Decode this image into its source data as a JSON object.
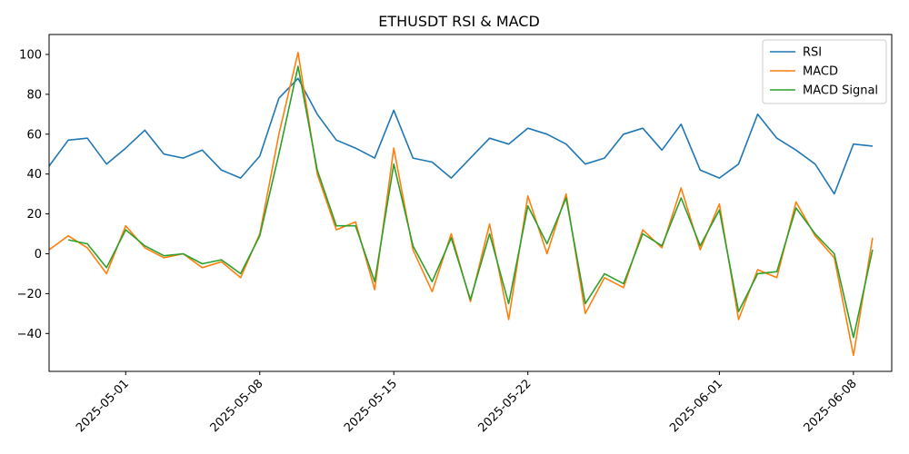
{
  "chart_data": {
    "type": "line",
    "title": "ETHUSDT RSI & MACD",
    "xlabel": "",
    "ylabel": "",
    "x_range": [
      "2025-04-27",
      "2025-06-10"
    ],
    "ylim": [
      -59,
      110
    ],
    "x_ticks": [
      "2025-05-01",
      "2025-05-08",
      "2025-05-15",
      "2025-05-22",
      "2025-06-01",
      "2025-06-08"
    ],
    "y_ticks": [
      -40,
      -20,
      0,
      20,
      40,
      60,
      80,
      100
    ],
    "grid": false,
    "legend_position": "top-right",
    "colors": {
      "RSI": "#1f77b4",
      "MACD": "#ff7f0e",
      "MACD Signal": "#2ca02c"
    },
    "series": [
      {
        "name": "RSI",
        "x": [
          "2025-04-27",
          "2025-04-28",
          "2025-04-29",
          "2025-04-30",
          "2025-05-01",
          "2025-05-02",
          "2025-05-03",
          "2025-05-04",
          "2025-05-05",
          "2025-05-06",
          "2025-05-07",
          "2025-05-08",
          "2025-05-09",
          "2025-05-10",
          "2025-05-11",
          "2025-05-12",
          "2025-05-13",
          "2025-05-14",
          "2025-05-15",
          "2025-05-16",
          "2025-05-17",
          "2025-05-18",
          "2025-05-19",
          "2025-05-20",
          "2025-05-21",
          "2025-05-22",
          "2025-05-23",
          "2025-05-24",
          "2025-05-25",
          "2025-05-26",
          "2025-05-27",
          "2025-05-28",
          "2025-05-29",
          "2025-05-30",
          "2025-05-31",
          "2025-06-01",
          "2025-06-02",
          "2025-06-03",
          "2025-06-04",
          "2025-06-05",
          "2025-06-06",
          "2025-06-07",
          "2025-06-08",
          "2025-06-09"
        ],
        "values": [
          44,
          57,
          58,
          45,
          53,
          62,
          50,
          48,
          52,
          42,
          38,
          49,
          78,
          88,
          70,
          57,
          53,
          48,
          72,
          48,
          46,
          38,
          48,
          58,
          55,
          63,
          60,
          55,
          45,
          48,
          60,
          63,
          52,
          65,
          42,
          38,
          45,
          70,
          58,
          52,
          45,
          30,
          55,
          54
        ]
      },
      {
        "name": "MACD",
        "x": [
          "2025-04-27",
          "2025-04-28",
          "2025-04-29",
          "2025-04-30",
          "2025-05-01",
          "2025-05-02",
          "2025-05-03",
          "2025-05-04",
          "2025-05-05",
          "2025-05-06",
          "2025-05-07",
          "2025-05-08",
          "2025-05-09",
          "2025-05-10",
          "2025-05-11",
          "2025-05-12",
          "2025-05-13",
          "2025-05-14",
          "2025-05-15",
          "2025-05-16",
          "2025-05-17",
          "2025-05-18",
          "2025-05-19",
          "2025-05-20",
          "2025-05-21",
          "2025-05-22",
          "2025-05-23",
          "2025-05-24",
          "2025-05-25",
          "2025-05-26",
          "2025-05-27",
          "2025-05-28",
          "2025-05-29",
          "2025-05-30",
          "2025-05-31",
          "2025-06-01",
          "2025-06-02",
          "2025-06-03",
          "2025-06-04",
          "2025-06-05",
          "2025-06-06",
          "2025-06-07",
          "2025-06-08",
          "2025-06-09"
        ],
        "values": [
          2,
          9,
          3,
          -10,
          14,
          3,
          -2,
          0,
          -7,
          -4,
          -12,
          10,
          60,
          101,
          40,
          12,
          16,
          -18,
          53,
          2,
          -19,
          10,
          -24,
          15,
          -33,
          29,
          0,
          30,
          -30,
          -12,
          -17,
          12,
          3,
          33,
          2,
          25,
          -33,
          -8,
          -12,
          26,
          9,
          -2,
          -51,
          8
        ]
      },
      {
        "name": "MACD Signal",
        "x": [
          "2025-04-27",
          "2025-04-28",
          "2025-04-29",
          "2025-04-30",
          "2025-05-01",
          "2025-05-02",
          "2025-05-03",
          "2025-05-04",
          "2025-05-05",
          "2025-05-06",
          "2025-05-07",
          "2025-05-08",
          "2025-05-09",
          "2025-05-10",
          "2025-05-11",
          "2025-05-12",
          "2025-05-13",
          "2025-05-14",
          "2025-05-15",
          "2025-05-16",
          "2025-05-17",
          "2025-05-18",
          "2025-05-19",
          "2025-05-20",
          "2025-05-21",
          "2025-05-22",
          "2025-05-23",
          "2025-05-24",
          "2025-05-25",
          "2025-05-26",
          "2025-05-27",
          "2025-05-28",
          "2025-05-29",
          "2025-05-30",
          "2025-05-31",
          "2025-06-01",
          "2025-06-02",
          "2025-06-03",
          "2025-06-04",
          "2025-06-05",
          "2025-06-06",
          "2025-06-07",
          "2025-06-08",
          "2025-06-09"
        ],
        "values": [
          null,
          7,
          5,
          -7,
          12,
          4,
          -1,
          0,
          -5,
          -3,
          -10,
          9,
          50,
          94,
          42,
          14,
          14,
          -14,
          45,
          4,
          -14,
          8,
          -23,
          10,
          -25,
          24,
          5,
          28,
          -25,
          -10,
          -15,
          10,
          4,
          28,
          4,
          22,
          -29,
          -10,
          -9,
          23,
          10,
          0,
          -42,
          2
        ]
      }
    ]
  }
}
